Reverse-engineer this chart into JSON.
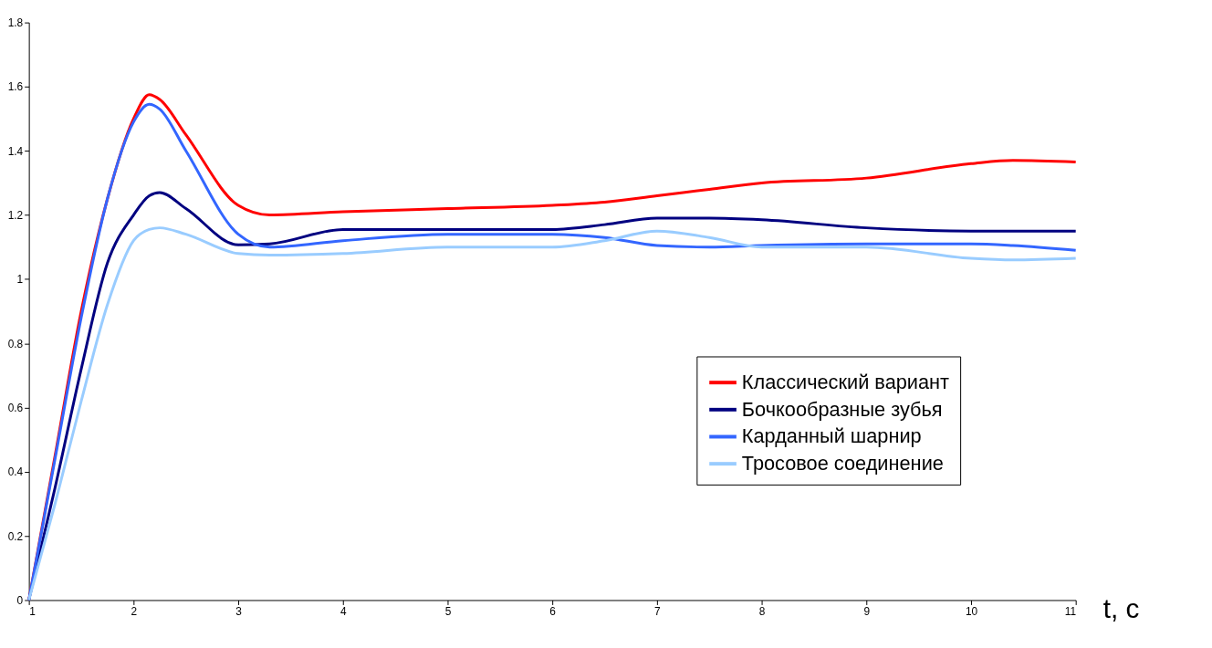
{
  "chart_data": {
    "type": "line",
    "xlabel": "t, c",
    "x": [
      1,
      1.25,
      1.5,
      1.75,
      2,
      2.15,
      2.25,
      2.5,
      3,
      3.3,
      4,
      5,
      6,
      6.5,
      7,
      7.5,
      8,
      9,
      10,
      10.4,
      11
    ],
    "series": [
      {
        "name": "Классический вариант",
        "color": "#ff0000",
        "values": [
          0,
          0.45,
          0.9,
          1.25,
          1.5,
          1.575,
          1.56,
          1.45,
          1.23,
          1.2,
          1.21,
          1.22,
          1.23,
          1.24,
          1.26,
          1.28,
          1.3,
          1.315,
          1.36,
          1.37,
          1.365
        ]
      },
      {
        "name": "Бочкообразные зубья",
        "color": "#000080",
        "values": [
          0,
          0.35,
          0.72,
          1.05,
          1.2,
          1.26,
          1.27,
          1.22,
          1.107,
          1.11,
          1.155,
          1.155,
          1.155,
          1.17,
          1.19,
          1.19,
          1.185,
          1.16,
          1.15,
          1.15,
          1.15
        ]
      },
      {
        "name": "Карданный шарнир",
        "color": "#3366ff",
        "values": [
          0,
          0.44,
          0.88,
          1.25,
          1.49,
          1.545,
          1.53,
          1.4,
          1.14,
          1.1,
          1.12,
          1.14,
          1.14,
          1.13,
          1.105,
          1.1,
          1.105,
          1.11,
          1.11,
          1.105,
          1.09
        ]
      },
      {
        "name": "Тросовое соединение",
        "color": "#99ccff",
        "values": [
          0,
          0.3,
          0.62,
          0.92,
          1.12,
          1.155,
          1.16,
          1.14,
          1.08,
          1.075,
          1.08,
          1.1,
          1.1,
          1.12,
          1.15,
          1.13,
          1.1,
          1.1,
          1.065,
          1.06,
          1.065
        ]
      }
    ],
    "xlim": [
      1,
      11
    ],
    "xticks": [
      1,
      2,
      3,
      4,
      5,
      6,
      7,
      8,
      9,
      10,
      11
    ],
    "ylim": [
      0,
      1.8
    ],
    "yticks": [
      0,
      0.2,
      0.4,
      0.6,
      0.8,
      1,
      1.2,
      1.4,
      1.6,
      1.8
    ],
    "grid": false,
    "legend": "bottom right",
    "marker": "none",
    "line_style": "solid"
  }
}
